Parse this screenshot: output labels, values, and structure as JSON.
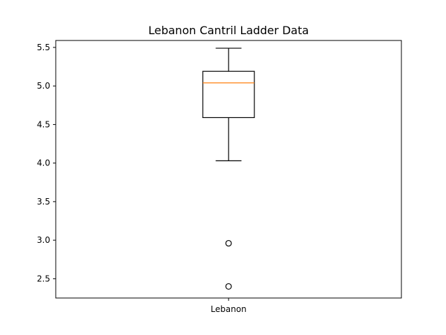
{
  "chart_data": {
    "type": "box",
    "title": "Lebanon Cantril Ladder Data",
    "xlabel": "",
    "ylabel": "",
    "categories": [
      "Lebanon"
    ],
    "boxes": [
      {
        "name": "Lebanon",
        "whisker_low": 4.03,
        "q1": 4.59,
        "median": 5.04,
        "q3": 5.19,
        "whisker_high": 5.49,
        "outliers": [
          2.96,
          2.4
        ]
      }
    ],
    "ylim": [
      2.25,
      5.59
    ],
    "yticks": [
      "2.5",
      "3.0",
      "3.5",
      "4.0",
      "4.5",
      "5.0",
      "5.5"
    ],
    "grid": false,
    "colors": {
      "box": "#000000",
      "median": "#ff7f0e",
      "outlier": "#000000"
    }
  }
}
